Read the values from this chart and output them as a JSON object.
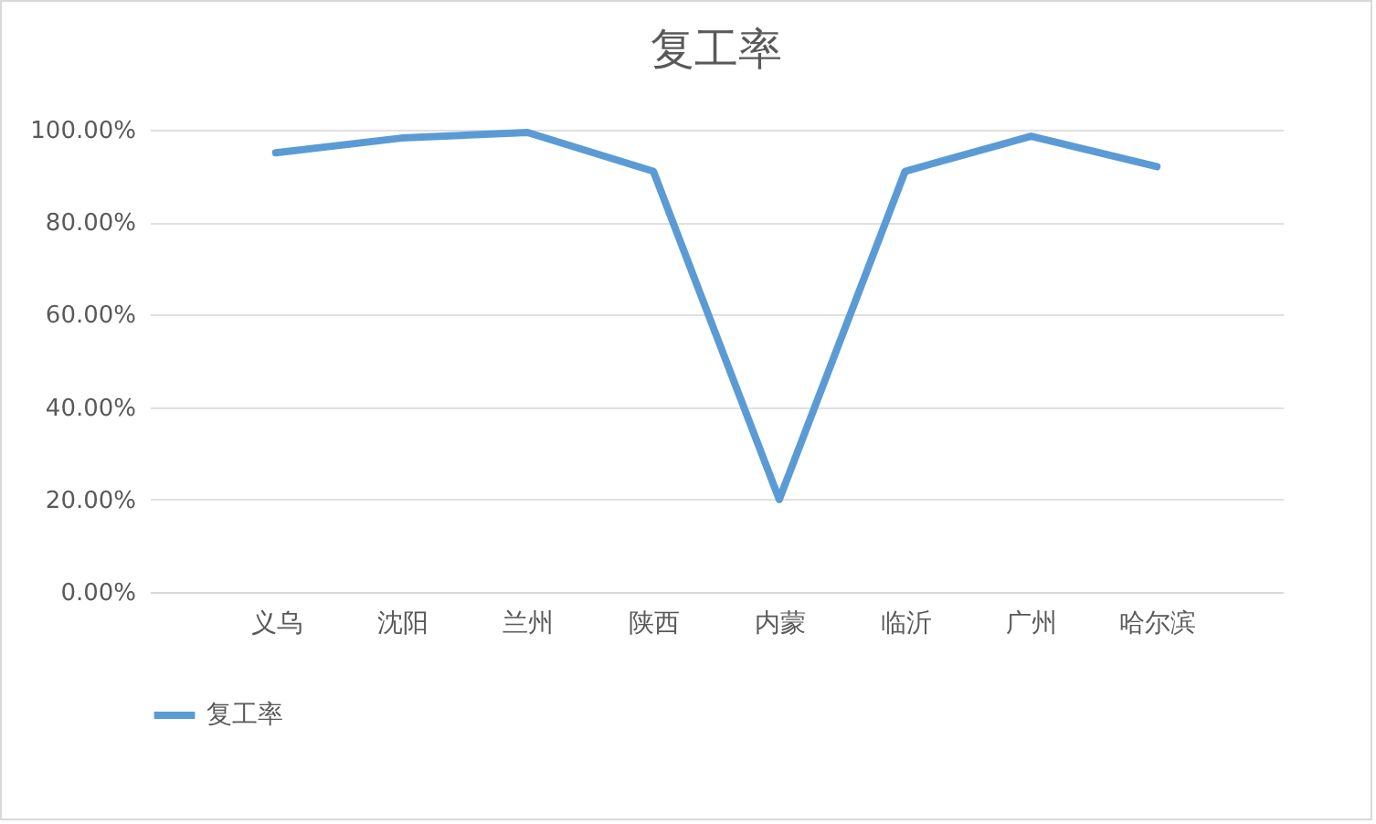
{
  "chart_data": {
    "type": "line",
    "title": "复工率",
    "categories": [
      "义乌",
      "沈阳",
      "兰州",
      "陕西",
      "内蒙",
      "临沂",
      "广州",
      "哈尔滨"
    ],
    "series": [
      {
        "name": "复工率",
        "color": "#5b9bd5",
        "values": [
          95,
          98.2,
          99.4,
          91,
          20,
          91,
          98.6,
          92
        ]
      }
    ],
    "ylim": [
      0,
      100
    ],
    "yticks": [
      {
        "value": 0,
        "label": "0.00%"
      },
      {
        "value": 20,
        "label": "20.00%"
      },
      {
        "value": 40,
        "label": "40.00%"
      },
      {
        "value": 60,
        "label": "60.00%"
      },
      {
        "value": 80,
        "label": "80.00%"
      },
      {
        "value": 100,
        "label": "100.00%"
      }
    ],
    "grid": "y",
    "legend": "bottom",
    "marker": "none",
    "line_style": "solid"
  }
}
